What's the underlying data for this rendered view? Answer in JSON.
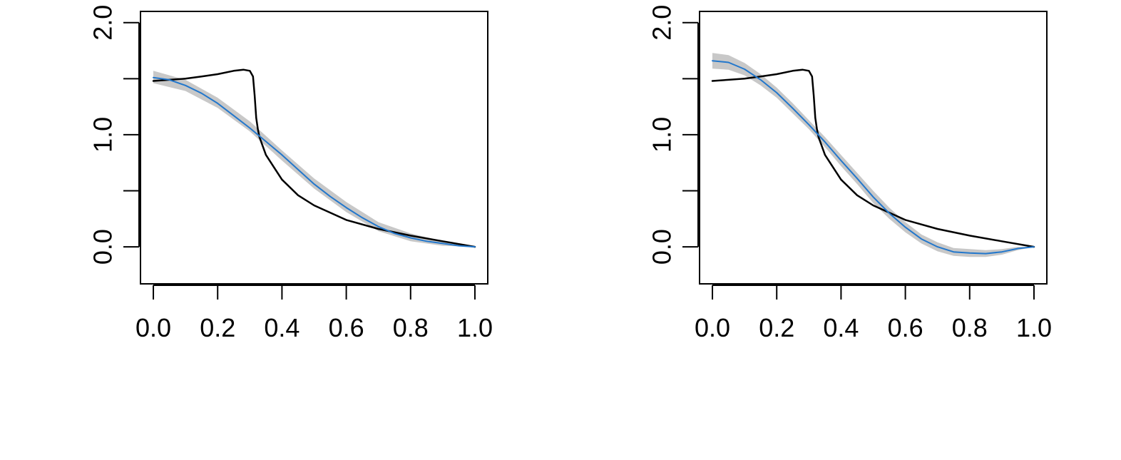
{
  "chart_data": [
    {
      "type": "line",
      "title": "",
      "xlabel": "",
      "ylabel": "",
      "xlim": [
        -0.04,
        1.04
      ],
      "ylim": [
        -0.33,
        2.1
      ],
      "x_ticks": [
        {
          "value": 0.0,
          "label": "0.0"
        },
        {
          "value": 0.2,
          "label": "0.2"
        },
        {
          "value": 0.4,
          "label": "0.4"
        },
        {
          "value": 0.6,
          "label": "0.6"
        },
        {
          "value": 0.8,
          "label": "0.8"
        },
        {
          "value": 1.0,
          "label": "1.0"
        }
      ],
      "y_ticks": [
        {
          "value": 0.0,
          "label": "0.0"
        },
        {
          "value": 0.5,
          "label": ""
        },
        {
          "value": 1.0,
          "label": "1.0"
        },
        {
          "value": 1.5,
          "label": ""
        },
        {
          "value": 2.0,
          "label": "2.0"
        }
      ],
      "grid": false,
      "band": {
        "color": "#c8c8c8",
        "x": [
          0,
          0.1,
          0.2,
          0.3,
          0.4,
          0.5,
          0.6,
          0.7,
          0.8,
          0.9,
          1.0
        ],
        "lower": [
          1.46,
          1.39,
          1.24,
          1.03,
          0.77,
          0.52,
          0.31,
          0.14,
          0.05,
          0.01,
          0.0
        ],
        "upper": [
          1.57,
          1.49,
          1.33,
          1.12,
          0.86,
          0.61,
          0.4,
          0.22,
          0.12,
          0.05,
          0.0
        ]
      },
      "series": [
        {
          "color": "#000000",
          "x": [
            0,
            0.05,
            0.1,
            0.15,
            0.2,
            0.25,
            0.28,
            0.3,
            0.31,
            0.315,
            0.32,
            0.325,
            0.33,
            0.35,
            0.4,
            0.45,
            0.5,
            0.6,
            0.7,
            0.8,
            0.9,
            1.0
          ],
          "y": [
            1.48,
            1.49,
            1.5,
            1.52,
            1.54,
            1.57,
            1.58,
            1.57,
            1.52,
            1.35,
            1.15,
            1.05,
            0.98,
            0.82,
            0.6,
            0.46,
            0.37,
            0.24,
            0.16,
            0.1,
            0.05,
            0.0
          ]
        },
        {
          "color": "#2277cc",
          "x": [
            0,
            0.05,
            0.1,
            0.15,
            0.2,
            0.25,
            0.3,
            0.35,
            0.4,
            0.45,
            0.5,
            0.55,
            0.6,
            0.65,
            0.7,
            0.75,
            0.8,
            0.85,
            0.9,
            0.95,
            1.0
          ],
          "y": [
            1.51,
            1.49,
            1.44,
            1.37,
            1.28,
            1.17,
            1.06,
            0.94,
            0.82,
            0.69,
            0.56,
            0.45,
            0.35,
            0.26,
            0.18,
            0.12,
            0.08,
            0.05,
            0.03,
            0.01,
            0.0
          ]
        }
      ]
    },
    {
      "type": "line",
      "title": "",
      "xlabel": "",
      "ylabel": "",
      "xlim": [
        -0.04,
        1.04
      ],
      "ylim": [
        -0.33,
        2.1
      ],
      "x_ticks": [
        {
          "value": 0.0,
          "label": "0.0"
        },
        {
          "value": 0.2,
          "label": "0.2"
        },
        {
          "value": 0.4,
          "label": "0.4"
        },
        {
          "value": 0.6,
          "label": "0.6"
        },
        {
          "value": 0.8,
          "label": "0.8"
        },
        {
          "value": 1.0,
          "label": "1.0"
        }
      ],
      "y_ticks": [
        {
          "value": 0.0,
          "label": "0.0"
        },
        {
          "value": 0.5,
          "label": ""
        },
        {
          "value": 1.0,
          "label": "1.0"
        },
        {
          "value": 1.5,
          "label": ""
        },
        {
          "value": 2.0,
          "label": "2.0"
        }
      ],
      "grid": false,
      "band": {
        "color": "#c8c8c8",
        "x": [
          0,
          0.05,
          0.1,
          0.15,
          0.2,
          0.25,
          0.3,
          0.35,
          0.4,
          0.45,
          0.5,
          0.55,
          0.6,
          0.65,
          0.7,
          0.75,
          0.8,
          0.85,
          0.9,
          0.95,
          1.0
        ],
        "lower": [
          1.59,
          1.58,
          1.53,
          1.44,
          1.33,
          1.19,
          1.05,
          0.89,
          0.72,
          0.56,
          0.39,
          0.25,
          0.13,
          0.03,
          -0.04,
          -0.08,
          -0.09,
          -0.09,
          -0.07,
          -0.03,
          0.0
        ],
        "upper": [
          1.73,
          1.71,
          1.64,
          1.54,
          1.42,
          1.28,
          1.13,
          0.98,
          0.82,
          0.66,
          0.5,
          0.35,
          0.22,
          0.11,
          0.04,
          -0.01,
          -0.02,
          -0.03,
          -0.02,
          0.0,
          0.0
        ]
      },
      "series": [
        {
          "color": "#000000",
          "x": [
            0,
            0.05,
            0.1,
            0.15,
            0.2,
            0.25,
            0.28,
            0.3,
            0.31,
            0.315,
            0.32,
            0.325,
            0.33,
            0.35,
            0.4,
            0.45,
            0.5,
            0.6,
            0.7,
            0.8,
            0.9,
            1.0
          ],
          "y": [
            1.48,
            1.49,
            1.5,
            1.52,
            1.54,
            1.57,
            1.58,
            1.57,
            1.52,
            1.35,
            1.15,
            1.05,
            0.98,
            0.82,
            0.6,
            0.46,
            0.37,
            0.24,
            0.16,
            0.1,
            0.05,
            0.0
          ]
        },
        {
          "color": "#2277cc",
          "x": [
            0,
            0.05,
            0.1,
            0.15,
            0.2,
            0.25,
            0.3,
            0.35,
            0.4,
            0.45,
            0.5,
            0.55,
            0.6,
            0.65,
            0.7,
            0.75,
            0.8,
            0.85,
            0.9,
            0.95,
            1.0
          ],
          "y": [
            1.66,
            1.645,
            1.585,
            1.49,
            1.375,
            1.235,
            1.09,
            0.935,
            0.77,
            0.61,
            0.445,
            0.3,
            0.175,
            0.07,
            0.0,
            -0.045,
            -0.055,
            -0.06,
            -0.045,
            -0.015,
            0.0
          ]
        }
      ]
    }
  ]
}
